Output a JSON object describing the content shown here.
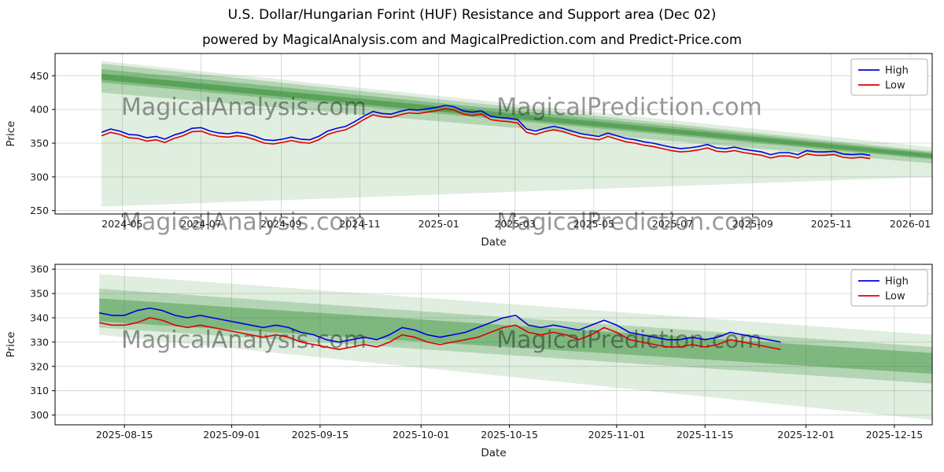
{
  "page": {
    "title": "U.S. Dollar/Hungarian Forint (HUF) Resistance and Support area (Dec 02)",
    "subtitle": "powered by MagicalAnalysis.com and MagicalPrediction.com and Predict-Price.com"
  },
  "colors": {
    "high": "#0000dd",
    "low": "#dd0000",
    "band": "#2e8b2e",
    "grid": "#d0d0d0",
    "watermark": "#999999",
    "spine": "#000000"
  },
  "watermarks": [
    "MagicalAnalysis.com",
    "MagicalPrediction.com"
  ],
  "legend": {
    "high_label": "High",
    "low_label": "Low"
  },
  "chart_data": [
    {
      "type": "line",
      "title": "",
      "xlabel": "Date",
      "ylabel": "Price",
      "x_domain": [
        "2024-03-10",
        "2026-01-18"
      ],
      "y_domain": [
        245,
        483
      ],
      "y_ticks": [
        250,
        300,
        350,
        400,
        450
      ],
      "x_ticks": [
        {
          "date": "2024-05-01",
          "label": "2024-05"
        },
        {
          "date": "2024-07-01",
          "label": "2024-07"
        },
        {
          "date": "2024-09-01",
          "label": "2024-09"
        },
        {
          "date": "2024-11-01",
          "label": "2024-11"
        },
        {
          "date": "2025-01-01",
          "label": "2025-01"
        },
        {
          "date": "2025-03-01",
          "label": "2025-03"
        },
        {
          "date": "2025-05-01",
          "label": "2025-05"
        },
        {
          "date": "2025-07-01",
          "label": "2025-07"
        },
        {
          "date": "2025-09-01",
          "label": "2025-09"
        },
        {
          "date": "2025-11-01",
          "label": "2025-11"
        },
        {
          "date": "2026-01-01",
          "label": "2026-01"
        }
      ],
      "series_start": "2024-04-15",
      "series_step_days": 7,
      "series": [
        {
          "name": "High",
          "color_key": "high",
          "values": [
            366,
            371,
            368,
            363,
            362,
            358,
            360,
            356,
            362,
            366,
            372,
            373,
            368,
            365,
            364,
            366,
            364,
            360,
            355,
            354,
            356,
            359,
            356,
            355,
            360,
            368,
            372,
            375,
            382,
            390,
            397,
            394,
            393,
            397,
            400,
            399,
            401,
            403,
            406,
            404,
            398,
            396,
            398,
            390,
            388,
            387,
            385,
            371,
            368,
            372,
            375,
            372,
            368,
            364,
            362,
            360,
            365,
            361,
            357,
            355,
            352,
            350,
            347,
            344,
            342,
            343,
            345,
            348,
            343,
            342,
            344,
            341,
            339,
            337,
            333,
            336,
            336,
            333,
            339,
            337,
            337,
            338,
            334,
            333,
            334,
            332
          ]
        },
        {
          "name": "Low",
          "color_key": "low",
          "values": [
            361,
            366,
            363,
            358,
            357,
            353,
            355,
            351,
            357,
            361,
            367,
            368,
            363,
            360,
            359,
            361,
            359,
            355,
            350,
            349,
            351,
            354,
            351,
            350,
            355,
            363,
            367,
            370,
            377,
            385,
            392,
            389,
            388,
            392,
            395,
            394,
            396,
            398,
            401,
            399,
            393,
            391,
            393,
            385,
            383,
            382,
            380,
            366,
            363,
            367,
            370,
            367,
            363,
            359,
            357,
            355,
            360,
            356,
            352,
            350,
            347,
            345,
            342,
            339,
            337,
            338,
            340,
            343,
            338,
            337,
            339,
            336,
            334,
            332,
            328,
            331,
            331,
            328,
            334,
            332,
            332,
            333,
            329,
            328,
            329,
            327
          ]
        }
      ],
      "bands": [
        {
          "x0": "2024-04-15",
          "x1": "2026-01-18",
          "top0": 472,
          "bottom0": 256,
          "top1": 344,
          "bottom1": 300,
          "opacity": 0.15
        },
        {
          "x0": "2024-04-15",
          "x1": "2026-01-18",
          "top0": 468,
          "bottom0": 425,
          "top1": 338,
          "bottom1": 320,
          "opacity": 0.25
        },
        {
          "x0": "2024-04-15",
          "x1": "2026-01-18",
          "top0": 460,
          "bottom0": 440,
          "top1": 336,
          "bottom1": 326,
          "opacity": 0.35
        },
        {
          "x0": "2024-04-15",
          "x1": "2026-01-18",
          "top0": 453,
          "bottom0": 444,
          "top1": 334,
          "bottom1": 328,
          "opacity": 0.5
        }
      ]
    },
    {
      "type": "line",
      "title": "",
      "xlabel": "Date",
      "ylabel": "Price",
      "x_domain": [
        "2025-08-04",
        "2025-12-21"
      ],
      "y_domain": [
        296,
        362
      ],
      "y_ticks": [
        300,
        310,
        320,
        330,
        340,
        350,
        360
      ],
      "x_ticks": [
        {
          "date": "2025-08-15",
          "label": "2025-08-15"
        },
        {
          "date": "2025-09-01",
          "label": "2025-09-01"
        },
        {
          "date": "2025-09-15",
          "label": "2025-09-15"
        },
        {
          "date": "2025-10-01",
          "label": "2025-10-01"
        },
        {
          "date": "2025-10-15",
          "label": "2025-10-15"
        },
        {
          "date": "2025-11-01",
          "label": "2025-11-01"
        },
        {
          "date": "2025-11-15",
          "label": "2025-11-15"
        },
        {
          "date": "2025-12-01",
          "label": "2025-12-01"
        },
        {
          "date": "2025-12-15",
          "label": "2025-12-15"
        }
      ],
      "series_start": "2025-08-11",
      "series_step_days": 2,
      "series": [
        {
          "name": "High",
          "color_key": "high",
          "values": [
            342,
            341,
            341,
            343,
            344,
            343,
            341,
            340,
            341,
            340,
            339,
            338,
            337,
            336,
            337,
            336,
            334,
            333,
            331,
            330,
            331,
            332,
            331,
            333,
            336,
            335,
            333,
            332,
            333,
            334,
            336,
            338,
            340,
            341,
            337,
            336,
            337,
            336,
            335,
            337,
            339,
            337,
            334,
            333,
            332,
            331,
            331,
            332,
            331,
            332,
            334,
            333,
            332,
            331,
            330
          ]
        },
        {
          "name": "Low",
          "color_key": "low",
          "values": [
            338,
            337,
            337,
            338,
            340,
            339,
            337,
            336,
            337,
            336,
            335,
            334,
            333,
            332,
            333,
            332,
            330,
            329,
            328,
            327,
            328,
            329,
            328,
            330,
            333,
            332,
            330,
            329,
            330,
            331,
            332,
            334,
            336,
            337,
            334,
            333,
            334,
            333,
            331,
            333,
            336,
            334,
            331,
            330,
            329,
            328,
            328,
            329,
            328,
            329,
            331,
            330,
            329,
            328,
            327
          ]
        }
      ],
      "bands": [
        {
          "x0": "2025-08-11",
          "x1": "2025-12-21",
          "top0": 358,
          "bottom0": 333,
          "top1": 333,
          "bottom1": 298,
          "opacity": 0.15
        },
        {
          "x0": "2025-08-11",
          "x1": "2025-12-21",
          "top0": 352,
          "bottom0": 336,
          "top1": 328,
          "bottom1": 313,
          "opacity": 0.25
        },
        {
          "x0": "2025-08-11",
          "x1": "2025-12-21",
          "top0": 348,
          "bottom0": 338.5,
          "top1": 325.5,
          "bottom1": 317,
          "opacity": 0.4
        }
      ]
    }
  ]
}
